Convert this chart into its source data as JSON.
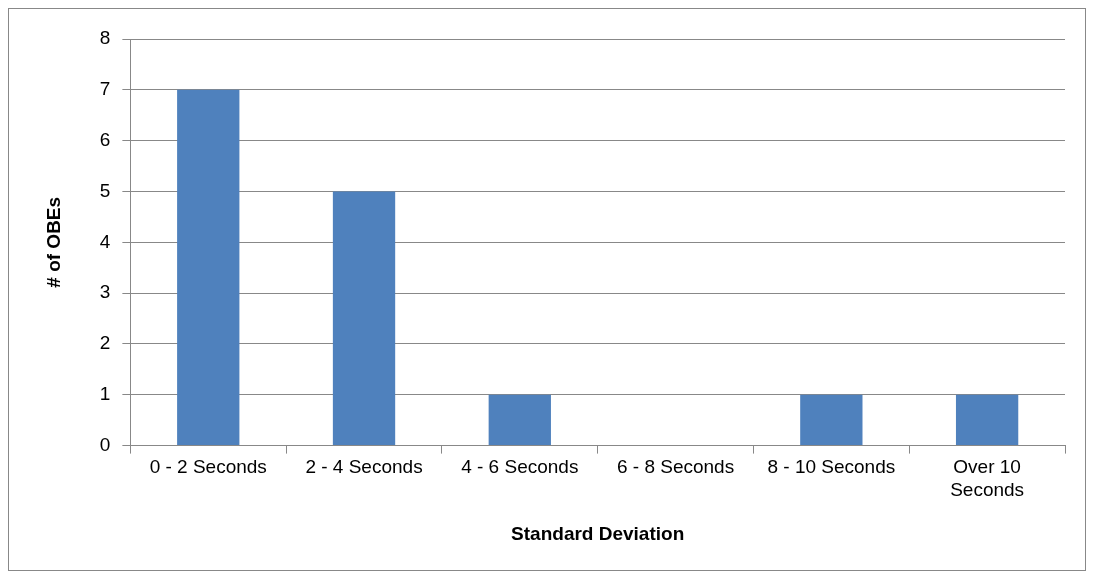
{
  "chart_data": {
    "type": "bar",
    "xlabel": "Standard Deviation",
    "ylabel": "# of OBEs",
    "categories": [
      "0 - 2 Seconds",
      "2 - 4 Seconds",
      "4 - 6 Seconds",
      "6 - 8 Seconds",
      "8 - 10 Seconds",
      "Over 10 Seconds"
    ],
    "values": [
      7,
      5,
      1,
      0,
      1,
      1
    ],
    "color": "#4f81bd",
    "ylim": [
      0,
      8
    ],
    "yticks": [
      0,
      1,
      2,
      3,
      4,
      5,
      6,
      7,
      8
    ],
    "grid": "y",
    "legend": false
  }
}
